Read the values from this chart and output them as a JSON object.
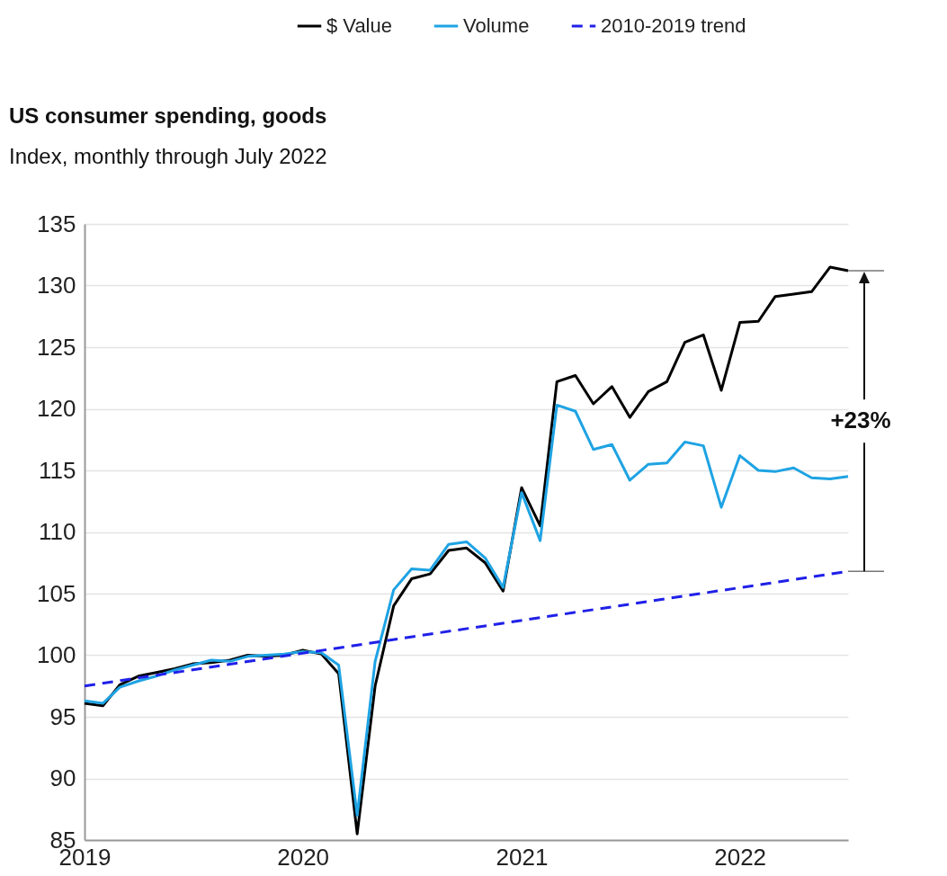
{
  "chart_data": {
    "type": "line",
    "title": "US consumer spending, goods",
    "subtitle": "Index, monthly through July 2022",
    "x": [
      "2019-01",
      "2019-02",
      "2019-03",
      "2019-04",
      "2019-05",
      "2019-06",
      "2019-07",
      "2019-08",
      "2019-09",
      "2019-10",
      "2019-11",
      "2019-12",
      "2020-01",
      "2020-02",
      "2020-03",
      "2020-04",
      "2020-05",
      "2020-06",
      "2020-07",
      "2020-08",
      "2020-09",
      "2020-10",
      "2020-11",
      "2020-12",
      "2021-01",
      "2021-02",
      "2021-03",
      "2021-04",
      "2021-05",
      "2021-06",
      "2021-07",
      "2021-08",
      "2021-09",
      "2021-10",
      "2021-11",
      "2021-12",
      "2022-01",
      "2022-02",
      "2022-03",
      "2022-04",
      "2022-05",
      "2022-06",
      "2022-07"
    ],
    "series": [
      {
        "name": "$ Value",
        "color": "#000000",
        "values": [
          96.1,
          95.9,
          97.6,
          98.3,
          98.6,
          98.9,
          99.3,
          99.4,
          99.6,
          100.0,
          99.9,
          100.0,
          100.4,
          100.1,
          98.5,
          85.5,
          97.5,
          104.0,
          106.2,
          106.6,
          108.5,
          108.7,
          107.5,
          105.2,
          113.6,
          110.5,
          122.2,
          122.7,
          120.4,
          121.8,
          119.3,
          121.4,
          122.2,
          125.4,
          126.0,
          121.5,
          127.0,
          127.1,
          129.1,
          129.3,
          129.5,
          131.5,
          131.2
        ]
      },
      {
        "name": "Volume",
        "color": "#1ea3e3",
        "values": [
          96.3,
          96.1,
          97.4,
          97.9,
          98.3,
          98.8,
          99.2,
          99.6,
          99.5,
          99.9,
          100.0,
          100.1,
          100.3,
          100.2,
          99.2,
          87.0,
          99.5,
          105.3,
          107.0,
          106.9,
          109.0,
          109.2,
          107.9,
          105.5,
          113.2,
          109.3,
          120.3,
          119.8,
          116.7,
          117.1,
          114.2,
          115.5,
          115.6,
          117.3,
          117.0,
          112.0,
          116.2,
          115.0,
          114.9,
          115.2,
          114.4,
          114.3,
          114.5
        ]
      },
      {
        "name": "2010-2019 trend",
        "color": "#2020e8",
        "line_style": "dashed",
        "x": [
          "2019-01",
          "2022-07"
        ],
        "values": [
          97.5,
          106.8
        ]
      }
    ],
    "xlim": [
      "2019-01",
      "2022-07"
    ],
    "xticks": [
      "2019",
      "2020",
      "2021",
      "2022"
    ],
    "ylim": [
      85,
      135
    ],
    "yticks": [
      85,
      90,
      95,
      100,
      105,
      110,
      115,
      120,
      125,
      130,
      135
    ],
    "annotations": [
      "+23%"
    ],
    "grid": "y",
    "legend": "top right"
  }
}
